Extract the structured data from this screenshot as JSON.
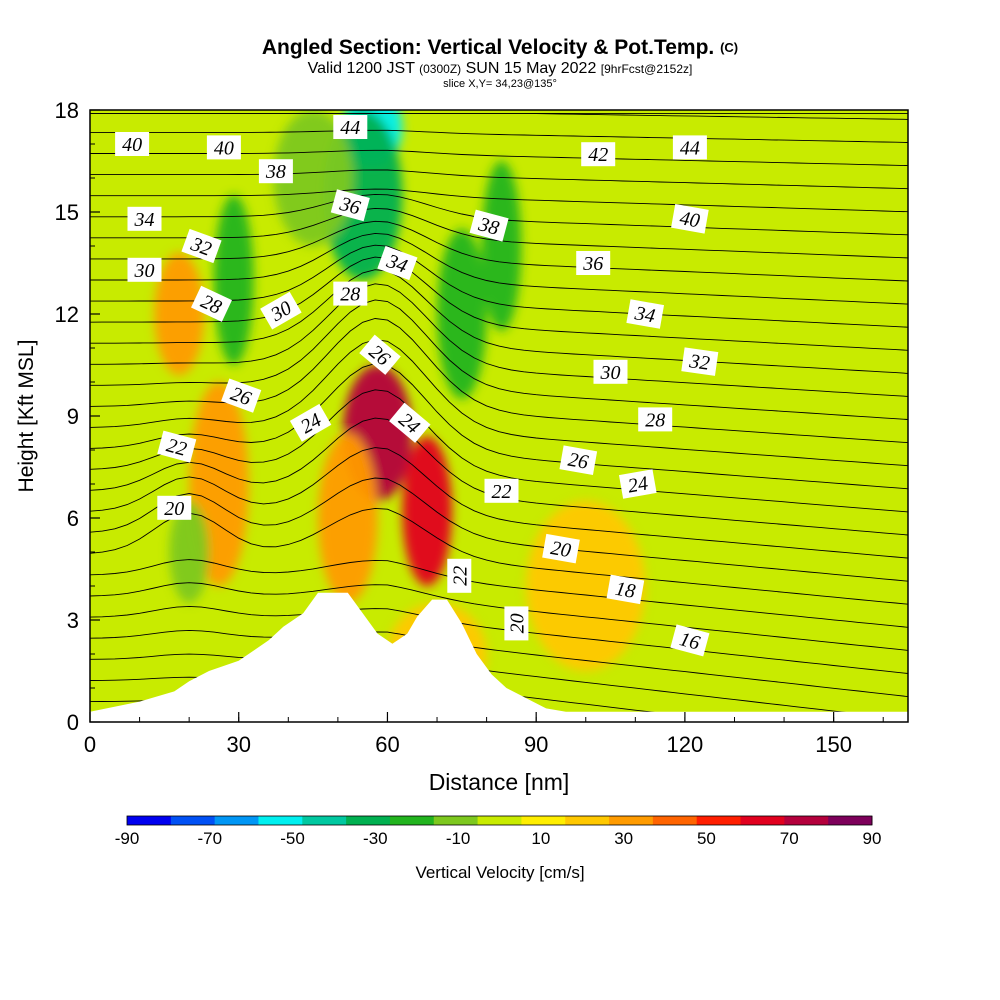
{
  "header": {
    "title": "Angled Section: Vertical Velocity & Pot.Temp.",
    "title_mark": "(C)",
    "valid_prefix": "Valid 1200 JST",
    "valid_zulu": "(0300Z)",
    "valid_date": "SUN 15 May 2022",
    "valid_fcst": "[9hrFcst@2152z]",
    "slice": "slice X,Y= 34,23@135°"
  },
  "chart_data": {
    "type": "heatmap",
    "xlabel": "Distance [nm]",
    "ylabel": "Height [Kft MSL]",
    "xlim": [
      0,
      165
    ],
    "ylim": [
      0,
      18
    ],
    "x_ticks": [
      "0",
      "30",
      "60",
      "90",
      "120",
      "150"
    ],
    "y_ticks": [
      "0",
      "3",
      "6",
      "9",
      "12",
      "15",
      "18"
    ],
    "x_tick_values": [
      0,
      30,
      60,
      90,
      120,
      150
    ],
    "y_tick_values": [
      0,
      3,
      6,
      9,
      12,
      15,
      18
    ],
    "terrain": [
      [
        0,
        0.3
      ],
      [
        10,
        0.6
      ],
      [
        17,
        0.9
      ],
      [
        20,
        1.2
      ],
      [
        24,
        1.5
      ],
      [
        30,
        1.8
      ],
      [
        33,
        2.1
      ],
      [
        36,
        2.4
      ],
      [
        39,
        2.8
      ],
      [
        43,
        3.2
      ],
      [
        46,
        3.8
      ],
      [
        52,
        3.8
      ],
      [
        55,
        3.2
      ],
      [
        58,
        2.6
      ],
      [
        61,
        2.3
      ],
      [
        64,
        2.6
      ],
      [
        66,
        3.1
      ],
      [
        69,
        3.6
      ],
      [
        72,
        3.6
      ],
      [
        75,
        2.9
      ],
      [
        78,
        2.0
      ],
      [
        81,
        1.4
      ],
      [
        84,
        1.0
      ],
      [
        88,
        0.7
      ],
      [
        92,
        0.4
      ],
      [
        96,
        0.3
      ],
      [
        165,
        0.3
      ]
    ],
    "colorbar": {
      "label": "Vertical Velocity [cm/s]",
      "tick_labels": [
        "-90",
        "-70",
        "-50",
        "-30",
        "-10",
        "10",
        "30",
        "50",
        "70",
        "90"
      ],
      "colors": [
        "#0000f0",
        "#0050f5",
        "#0096f5",
        "#00f0f0",
        "#00c8a0",
        "#00b050",
        "#22b41e",
        "#7dc81e",
        "#c8eb00",
        "#ffee00",
        "#ffc800",
        "#ff9b00",
        "#ff6400",
        "#ff1e00",
        "#e1001e",
        "#b4003c",
        "#7d005a"
      ]
    },
    "velocity_features": [
      {
        "x": 58,
        "y": 8.5,
        "value": 60
      },
      {
        "x": 68,
        "y": 6.2,
        "value": 55
      },
      {
        "x": 52,
        "y": 6.0,
        "value": 25
      },
      {
        "x": 18,
        "y": 12.0,
        "value": 25
      },
      {
        "x": 26,
        "y": 7.0,
        "value": 20
      },
      {
        "x": 100,
        "y": 4.0,
        "value": 10
      },
      {
        "x": 70,
        "y": 2.0,
        "value": 10
      },
      {
        "x": 57,
        "y": 17.5,
        "value": -60
      },
      {
        "x": 55,
        "y": 15.5,
        "value": -35
      },
      {
        "x": 75,
        "y": 12.0,
        "value": -25
      },
      {
        "x": 83,
        "y": 14.0,
        "value": -25
      },
      {
        "x": 29,
        "y": 13.0,
        "value": -25
      },
      {
        "x": 45,
        "y": 16.0,
        "value": -20
      },
      {
        "x": 20,
        "y": 5.0,
        "value": -12
      }
    ],
    "theta_labels": [
      {
        "text": "40",
        "x": 8.5,
        "y": 17.0,
        "rot": 0
      },
      {
        "text": "40",
        "x": 27,
        "y": 16.9,
        "rot": 0
      },
      {
        "text": "44",
        "x": 52.5,
        "y": 17.5,
        "rot": 0
      },
      {
        "text": "42",
        "x": 102.5,
        "y": 16.7,
        "rot": 0
      },
      {
        "text": "44",
        "x": 121,
        "y": 16.9,
        "rot": 0
      },
      {
        "text": "38",
        "x": 37.5,
        "y": 16.2,
        "rot": 0
      },
      {
        "text": "34",
        "x": 11,
        "y": 14.8,
        "rot": 0
      },
      {
        "text": "36",
        "x": 52.5,
        "y": 15.2,
        "rot": 15
      },
      {
        "text": "38",
        "x": 80.5,
        "y": 14.6,
        "rot": 15
      },
      {
        "text": "40",
        "x": 121,
        "y": 14.8,
        "rot": 10
      },
      {
        "text": "32",
        "x": 22.5,
        "y": 14.0,
        "rot": 20
      },
      {
        "text": "34",
        "x": 62,
        "y": 13.5,
        "rot": 20
      },
      {
        "text": "36",
        "x": 101.5,
        "y": 13.5,
        "rot": 0
      },
      {
        "text": "30",
        "x": 11,
        "y": 13.3,
        "rot": 0
      },
      {
        "text": "28",
        "x": 52.5,
        "y": 12.6,
        "rot": 0
      },
      {
        "text": "28",
        "x": 24.5,
        "y": 12.3,
        "rot": 25
      },
      {
        "text": "30",
        "x": 38.5,
        "y": 12.1,
        "rot": -30
      },
      {
        "text": "34",
        "x": 112,
        "y": 12.0,
        "rot": 10
      },
      {
        "text": "26",
        "x": 58.5,
        "y": 10.8,
        "rot": 40
      },
      {
        "text": "30",
        "x": 105,
        "y": 10.3,
        "rot": 0
      },
      {
        "text": "32",
        "x": 123,
        "y": 10.6,
        "rot": 8
      },
      {
        "text": "26",
        "x": 30.5,
        "y": 9.6,
        "rot": 20
      },
      {
        "text": "24",
        "x": 44.5,
        "y": 8.8,
        "rot": -30
      },
      {
        "text": "24",
        "x": 64.5,
        "y": 8.8,
        "rot": 40
      },
      {
        "text": "28",
        "x": 114,
        "y": 8.9,
        "rot": 0
      },
      {
        "text": "22",
        "x": 17.5,
        "y": 8.1,
        "rot": 15
      },
      {
        "text": "26",
        "x": 98.5,
        "y": 7.7,
        "rot": 10
      },
      {
        "text": "24",
        "x": 110.5,
        "y": 7.0,
        "rot": -10
      },
      {
        "text": "22",
        "x": 83,
        "y": 6.8,
        "rot": 0
      },
      {
        "text": "20",
        "x": 17,
        "y": 6.3,
        "rot": 0
      },
      {
        "text": "20",
        "x": 95,
        "y": 5.1,
        "rot": 10
      },
      {
        "text": "22",
        "x": 74.5,
        "y": 4.3,
        "rot": -90
      },
      {
        "text": "18",
        "x": 108,
        "y": 3.9,
        "rot": 10
      },
      {
        "text": "20",
        "x": 86,
        "y": 2.9,
        "rot": -90
      },
      {
        "text": "16",
        "x": 121,
        "y": 2.4,
        "rot": 15
      }
    ]
  }
}
